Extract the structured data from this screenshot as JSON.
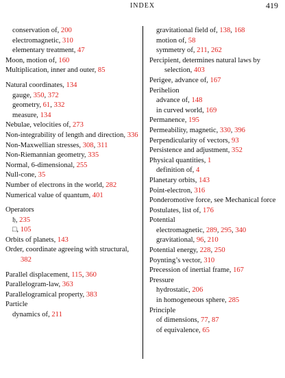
{
  "header": {
    "title": "INDEX",
    "page_number": "419"
  },
  "columns": [
    {
      "entries": [
        {
          "level": 1,
          "text": "conservation of, ",
          "refs": [
            "200"
          ]
        },
        {
          "level": 1,
          "text": "electromagnetic, ",
          "refs": [
            "310"
          ]
        },
        {
          "level": 1,
          "text": "elementary treatment, ",
          "refs": [
            "47"
          ]
        },
        {
          "level": 0,
          "text": "Moon, motion of, ",
          "refs": [
            "160"
          ]
        },
        {
          "level": 0,
          "text": "Multiplication, inner and outer, ",
          "refs": [
            "85"
          ]
        },
        {
          "level": 0,
          "gap": true,
          "text": "Natural coordinates, ",
          "refs": [
            "134"
          ]
        },
        {
          "level": 1,
          "text": "gauge, ",
          "refs": [
            "350",
            "372"
          ]
        },
        {
          "level": 1,
          "text": "geometry, ",
          "refs": [
            "61",
            "332"
          ]
        },
        {
          "level": 1,
          "text": "measure, ",
          "refs": [
            "134"
          ]
        },
        {
          "level": 0,
          "text": "Nebulae, velocities of, ",
          "refs": [
            "273"
          ]
        },
        {
          "level": 0,
          "text": "Non-integrability of length and direction, ",
          "refs": [
            "336"
          ]
        },
        {
          "level": 0,
          "text": "Non-Maxwellian stresses, ",
          "refs": [
            "308",
            "311"
          ]
        },
        {
          "level": 0,
          "text": "Non-Riemannian geometry, ",
          "refs": [
            "335"
          ]
        },
        {
          "level": 0,
          "text": "Normal, 6-dimensional, ",
          "refs": [
            "255"
          ]
        },
        {
          "level": 0,
          "text": "Null-cone, ",
          "refs": [
            "35"
          ]
        },
        {
          "level": 0,
          "text": "Number of electrons in the world, ",
          "refs": [
            "282"
          ]
        },
        {
          "level": 0,
          "text": "Numerical value of quantum, ",
          "refs": [
            "401"
          ]
        },
        {
          "level": 0,
          "gap": true,
          "text": "Operators",
          "refs": []
        },
        {
          "level": 1,
          "text": "𝔥, ",
          "refs": [
            "235"
          ]
        },
        {
          "level": 1,
          "text": "□, ",
          "refs": [
            "105"
          ]
        },
        {
          "level": 0,
          "text": "Orbits of planets, ",
          "refs": [
            "143"
          ]
        },
        {
          "level": 0,
          "text": "Order, coordinate agreeing with structural, ",
          "refs": [
            "382"
          ]
        },
        {
          "level": 0,
          "gap": true,
          "text": "Parallel displacement, ",
          "refs": [
            "115",
            "360"
          ]
        },
        {
          "level": 0,
          "text": "Parallelogram-law, ",
          "refs": [
            "363"
          ]
        },
        {
          "level": 0,
          "text": "Parallelogramical property, ",
          "refs": [
            "383"
          ]
        },
        {
          "level": 0,
          "text": "Particle",
          "refs": []
        },
        {
          "level": 1,
          "text": "dynamics of, ",
          "refs": [
            "211"
          ]
        }
      ]
    },
    {
      "entries": [
        {
          "level": 1,
          "text": "gravitational field of, ",
          "refs": [
            "138",
            "168"
          ]
        },
        {
          "level": 1,
          "text": "motion of, ",
          "refs": [
            "58"
          ]
        },
        {
          "level": 1,
          "text": "symmetry of, ",
          "refs": [
            "211",
            "262"
          ]
        },
        {
          "level": 0,
          "text": "Percipient, determines natural laws by selection, ",
          "refs": [
            "403"
          ]
        },
        {
          "level": 0,
          "text": "Perigee, advance of, ",
          "refs": [
            "167"
          ]
        },
        {
          "level": 0,
          "text": "Perihelion",
          "refs": []
        },
        {
          "level": 1,
          "text": "advance of, ",
          "refs": [
            "148"
          ]
        },
        {
          "level": 1,
          "text": "in curved world, ",
          "refs": [
            "169"
          ]
        },
        {
          "level": 0,
          "text": "Permanence, ",
          "refs": [
            "195"
          ]
        },
        {
          "level": 0,
          "text": "Permeability, magnetic, ",
          "refs": [
            "330",
            "396"
          ]
        },
        {
          "level": 0,
          "text": "Perpendicularity of vectors, ",
          "refs": [
            "93"
          ]
        },
        {
          "level": 0,
          "text": "Persistence and adjustment, ",
          "refs": [
            "352"
          ]
        },
        {
          "level": 0,
          "text": "Physical quantities, ",
          "refs": [
            "1"
          ]
        },
        {
          "level": 1,
          "text": "definition of, ",
          "refs": [
            "4"
          ]
        },
        {
          "level": 0,
          "text": "Planetary orbits, ",
          "refs": [
            "143"
          ]
        },
        {
          "level": 0,
          "text": "Point-electron, ",
          "refs": [
            "316"
          ]
        },
        {
          "level": 0,
          "text": "Ponderomotive force, see Mechanical force",
          "refs": []
        },
        {
          "level": 0,
          "text": "Postulates, list of, ",
          "refs": [
            "176"
          ]
        },
        {
          "level": 0,
          "text": "Potential",
          "refs": []
        },
        {
          "level": 1,
          "text": "electromagnetic, ",
          "refs": [
            "289",
            "295",
            "340"
          ]
        },
        {
          "level": 1,
          "text": "gravitational, ",
          "refs": [
            "96",
            "210"
          ]
        },
        {
          "level": 0,
          "text": "Potential energy, ",
          "refs": [
            "228",
            "250"
          ]
        },
        {
          "level": 0,
          "text": "Poynting’s vector, ",
          "refs": [
            "310"
          ]
        },
        {
          "level": 0,
          "text": "Precession of inertial frame, ",
          "refs": [
            "167"
          ]
        },
        {
          "level": 0,
          "text": "Pressure",
          "refs": []
        },
        {
          "level": 1,
          "text": "hydrostatic, ",
          "refs": [
            "206"
          ]
        },
        {
          "level": 1,
          "text": "in homogeneous sphere, ",
          "refs": [
            "285"
          ]
        },
        {
          "level": 0,
          "text": "Principle",
          "refs": []
        },
        {
          "level": 1,
          "text": "of dimensions, ",
          "refs": [
            "77",
            "87"
          ]
        },
        {
          "level": 1,
          "text": "of equivalence, ",
          "refs": [
            "65"
          ]
        }
      ]
    }
  ]
}
